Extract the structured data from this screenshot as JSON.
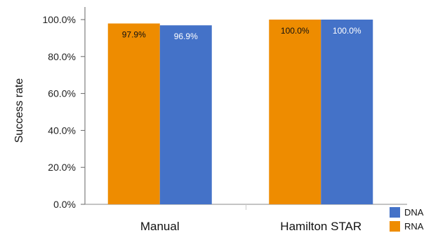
{
  "chart_data": {
    "type": "bar",
    "categories": [
      "Manual",
      "Hamilton STAR"
    ],
    "series": [
      {
        "name": "RNA",
        "values": [
          97.9,
          100.0
        ],
        "labels": [
          "97.9%",
          "100.0%"
        ],
        "color": "#EE8C00"
      },
      {
        "name": "DNA",
        "values": [
          96.9,
          100.0
        ],
        "labels": [
          "96.9%",
          "100.0%"
        ],
        "color": "#4472C8"
      }
    ],
    "title": "",
    "xlabel": "",
    "ylabel": "Success rate",
    "ylim": [
      0,
      100
    ],
    "yticks": [
      0,
      20,
      40,
      60,
      80,
      100
    ],
    "ytick_labels": [
      "0.0%",
      "20.0%",
      "40.0%",
      "60.0%",
      "80.0%",
      "100.0%"
    ],
    "legend": {
      "position": "bottom-right",
      "order": [
        "DNA",
        "RNA"
      ]
    },
    "grid": false
  }
}
